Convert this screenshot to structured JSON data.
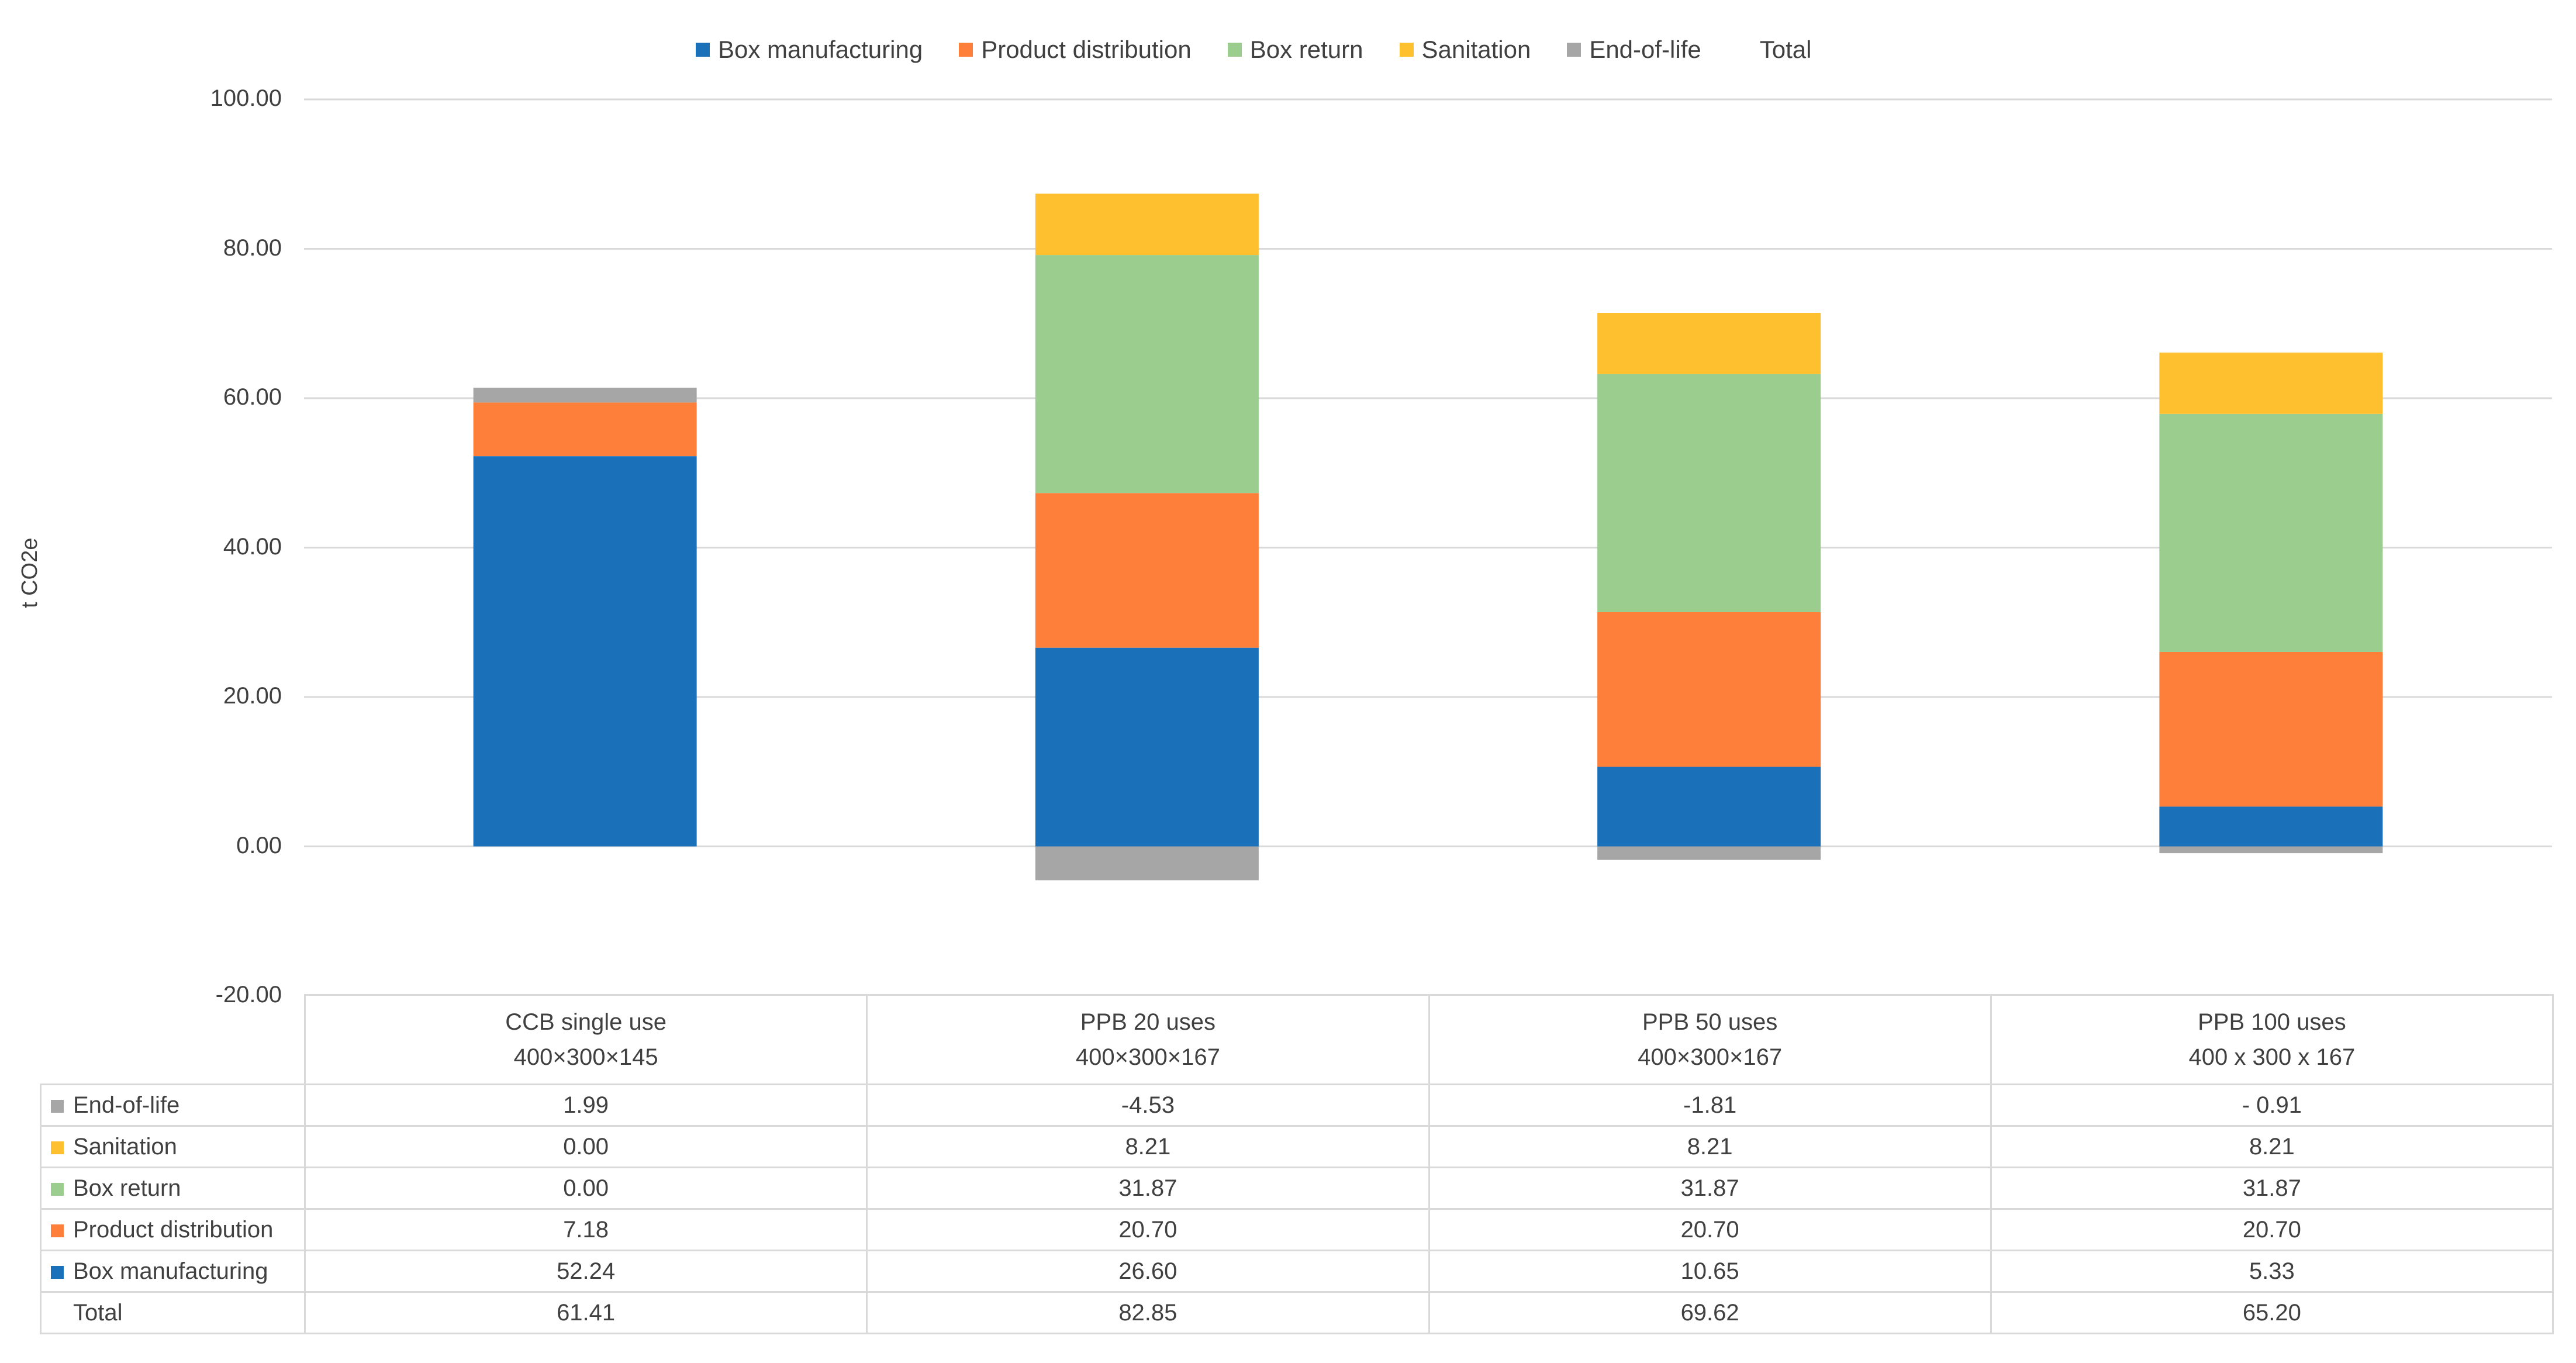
{
  "chart_data": {
    "type": "bar",
    "stacked": true,
    "title": "",
    "xlabel": "",
    "ylabel": "t CO2e",
    "ylim": [
      -20,
      100
    ],
    "yticks": [
      "-20.00",
      "0.00",
      "20.00",
      "40.00",
      "60.00",
      "80.00",
      "100.00"
    ],
    "grid": true,
    "legend_position": "top",
    "categories": [
      {
        "name": "CCB single use",
        "dims": "400×300×145"
      },
      {
        "name": "PPB 20 uses",
        "dims": "400×300×167"
      },
      {
        "name": "PPB 50 uses",
        "dims": "400×300×167"
      },
      {
        "name": "PPB 100 uses",
        "dims": "400 x 300 x 167"
      }
    ],
    "series": [
      {
        "name": "Box manufacturing",
        "color": "#1a70b9",
        "values": [
          52.24,
          26.6,
          10.65,
          5.33
        ],
        "labels": [
          "52.24",
          "26.60",
          "10.65",
          "5.33"
        ]
      },
      {
        "name": "Product distribution",
        "color": "#fe7f39",
        "values": [
          7.18,
          20.7,
          20.7,
          20.7
        ],
        "labels": [
          "7.18",
          "20.70",
          "20.70",
          "20.70"
        ]
      },
      {
        "name": "Box return",
        "color": "#9acd8e",
        "values": [
          0.0,
          31.87,
          31.87,
          31.87
        ],
        "labels": [
          "0.00",
          "31.87",
          "31.87",
          "31.87"
        ]
      },
      {
        "name": "Sanitation",
        "color": "#fec02f",
        "values": [
          0.0,
          8.21,
          8.21,
          8.21
        ],
        "labels": [
          "0.00",
          "8.21",
          "8.21",
          "8.21"
        ]
      },
      {
        "name": "End-of-life",
        "color": "#a6a6a6",
        "values": [
          1.99,
          -4.53,
          -1.81,
          -0.91
        ],
        "labels": [
          "1.99",
          "-4.53",
          "-1.81",
          "- 0.91"
        ]
      }
    ],
    "total": {
      "name": "Total",
      "values": [
        61.41,
        82.85,
        69.62,
        65.2
      ],
      "labels": [
        "61.41",
        "82.85",
        "69.62",
        "65.20"
      ]
    },
    "table_row_order": [
      "End-of-life",
      "Sanitation",
      "Box return",
      "Product distribution",
      "Box manufacturing"
    ]
  }
}
